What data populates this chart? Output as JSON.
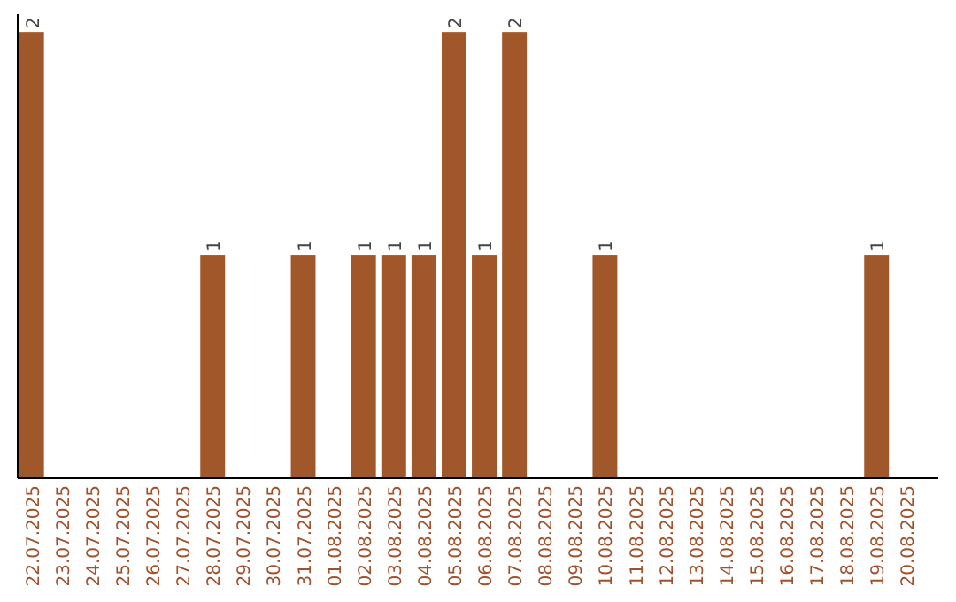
{
  "chart_data": {
    "type": "bar",
    "categories": [
      "22.07.2025",
      "23.07.2025",
      "24.07.2025",
      "25.07.2025",
      "26.07.2025",
      "27.07.2025",
      "28.07.2025",
      "29.07.2025",
      "30.07.2025",
      "31.07.2025",
      "01.08.2025",
      "02.08.2025",
      "03.08.2025",
      "04.08.2025",
      "05.08.2025",
      "06.08.2025",
      "07.08.2025",
      "08.08.2025",
      "09.08.2025",
      "10.08.2025",
      "11.08.2025",
      "12.08.2025",
      "13.08.2025",
      "14.08.2025",
      "15.08.2025",
      "16.08.2025",
      "17.08.2025",
      "18.08.2025",
      "19.08.2025",
      "20.08.2025"
    ],
    "values": [
      2,
      0,
      0,
      0,
      0,
      0,
      1,
      0,
      0,
      1,
      0,
      1,
      1,
      1,
      2,
      1,
      2,
      0,
      0,
      1,
      0,
      0,
      0,
      0,
      0,
      0,
      0,
      0,
      1,
      0
    ],
    "value_labels": [
      "2",
      null,
      null,
      null,
      null,
      null,
      "1",
      null,
      null,
      "1",
      null,
      "1",
      "1",
      "1",
      "2",
      "1",
      "2",
      null,
      null,
      "1",
      null,
      null,
      null,
      null,
      null,
      null,
      null,
      null,
      "1",
      null
    ],
    "color": "#a0582a",
    "tick_labels": "x"
  }
}
